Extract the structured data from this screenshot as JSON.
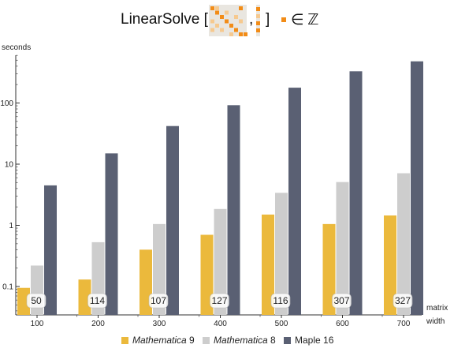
{
  "title": {
    "prefix": "LinearSolve [",
    "comma": ",",
    "close": "]",
    "member": "∈ ℤ"
  },
  "chart_data": {
    "type": "bar",
    "scale": "log",
    "ylabel": "seconds",
    "xlabel": "matrix width",
    "ylim": [
      0.035,
      700
    ],
    "yticks": [
      {
        "value": 0.1,
        "label": "0.1"
      },
      {
        "value": 1,
        "label": "1"
      },
      {
        "value": 10,
        "label": "10"
      },
      {
        "value": 100,
        "label": "100"
      }
    ],
    "categories": [
      "100",
      "200",
      "300",
      "400",
      "500",
      "600",
      "700"
    ],
    "series": [
      {
        "name": "Mathematica 9",
        "color": "#ebb93c",
        "values": [
          0.095,
          0.13,
          0.4,
          0.7,
          1.5,
          1.05,
          1.45
        ]
      },
      {
        "name": "Mathematica 8",
        "color": "#cdcdcd",
        "values": [
          0.22,
          0.53,
          1.05,
          1.85,
          3.4,
          5.1,
          7.1
        ]
      },
      {
        "name": "Maple 16",
        "color": "#5a6073",
        "values": [
          4.5,
          15,
          42,
          92,
          178,
          330,
          480
        ]
      }
    ],
    "annotations": [
      "50",
      "114",
      "107",
      "127",
      "116",
      "307",
      "327"
    ],
    "grid": false,
    "legend": "bottom"
  },
  "legend": {
    "items": [
      {
        "italic": "Mathematica",
        "rest": " 9",
        "color": "#ebb93c"
      },
      {
        "italic": "Mathematica",
        "rest": " 8",
        "color": "#cdcdcd"
      },
      {
        "italic": "",
        "rest": "Maple 16",
        "color": "#5a6073"
      }
    ]
  },
  "matrix_icon": {
    "bg": "#e9e6e0",
    "orange": "#f28c17",
    "light": "#f6c98f"
  }
}
